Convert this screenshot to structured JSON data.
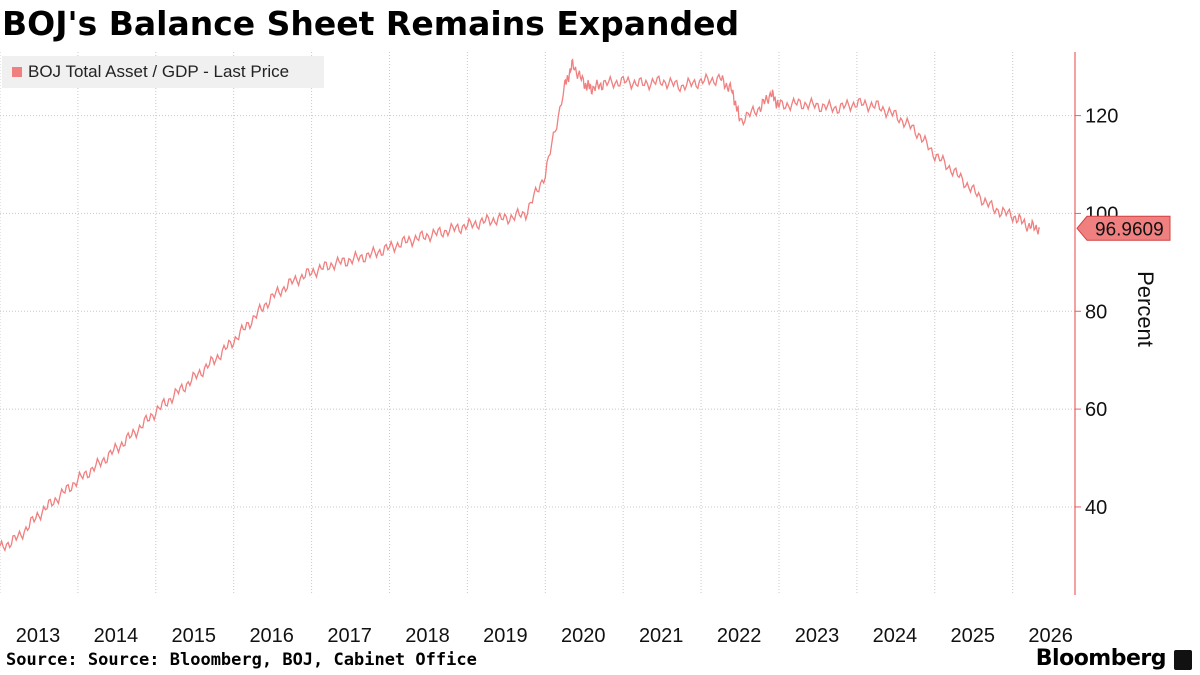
{
  "title": "BOJ's Balance Sheet Remains Expanded",
  "source": "Source: Source: Bloomberg, BOJ, Cabinet Office",
  "brand": "Bloomberg",
  "colors": {
    "series": "#f08080",
    "axis": "#f06060",
    "grid": "#c8c8c8",
    "legend_bg": "#f0f0f0"
  },
  "chart_data": {
    "type": "line",
    "title": "BOJ's Balance Sheet Remains Expanded",
    "xlabel": "",
    "ylabel": "Percent",
    "legend": "top-left",
    "grid": true,
    "xlim": [
      2013.0,
      2026.8
    ],
    "ylim": [
      22,
      133
    ],
    "x_ticks": [
      "2013",
      "2014",
      "2015",
      "2016",
      "2017",
      "2018",
      "2019",
      "2020",
      "2021",
      "2022",
      "2023",
      "2024",
      "2025",
      "2026"
    ],
    "y_ticks": [
      40,
      60,
      80,
      100,
      120
    ],
    "last_value_label": "96.9609",
    "series": [
      {
        "name": "BOJ Total Asset / GDP - Last Price",
        "x": [
          2013.0,
          2013.25,
          2013.5,
          2013.75,
          2014.0,
          2014.25,
          2014.5,
          2014.75,
          2015.0,
          2015.25,
          2015.5,
          2015.75,
          2016.0,
          2016.25,
          2016.5,
          2016.75,
          2017.0,
          2017.25,
          2017.5,
          2017.75,
          2018.0,
          2018.25,
          2018.5,
          2018.75,
          2019.0,
          2019.25,
          2019.5,
          2019.75,
          2020.0,
          2020.25,
          2020.35,
          2020.5,
          2020.6,
          2020.75,
          2021.0,
          2021.25,
          2021.5,
          2021.75,
          2022.0,
          2022.25,
          2022.4,
          2022.5,
          2022.75,
          2022.9,
          2023.0,
          2023.25,
          2023.5,
          2023.75,
          2024.0,
          2024.25,
          2024.5,
          2024.75,
          2025.0,
          2025.25,
          2025.5,
          2025.75,
          2026.0,
          2026.2,
          2026.35
        ],
        "values": [
          31.5,
          34.0,
          38.5,
          42.0,
          45.5,
          48.5,
          52.0,
          55.5,
          59.5,
          63.0,
          66.5,
          70.0,
          74.0,
          78.5,
          83.0,
          86.0,
          88.0,
          89.5,
          90.5,
          91.5,
          93.0,
          94.5,
          95.5,
          96.5,
          97.5,
          98.5,
          99.0,
          100.0,
          108.0,
          126.0,
          130.5,
          126.5,
          125.5,
          126.5,
          127.0,
          126.5,
          127.0,
          126.0,
          127.0,
          127.5,
          125.0,
          119.0,
          121.5,
          124.5,
          122.0,
          122.5,
          122.0,
          121.5,
          122.5,
          122.0,
          120.0,
          117.0,
          112.0,
          108.5,
          104.5,
          101.0,
          99.5,
          97.5,
          96.9609
        ]
      }
    ]
  }
}
